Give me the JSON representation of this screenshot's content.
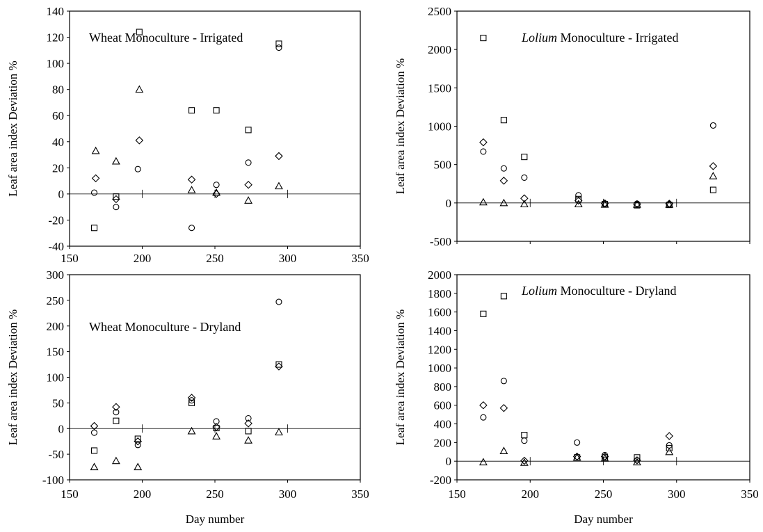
{
  "xlabel": "Day number",
  "ylabel": "Leaf area index Deviation %",
  "chart_data": [
    {
      "type": "scatter",
      "title": "Wheat Monoculture - Irrigated",
      "title_italic": "",
      "xlabel": "",
      "ylabel": "Leaf area index Deviation %",
      "xlim": [
        150,
        350
      ],
      "ylim": [
        -40,
        140
      ],
      "xticks": [
        "150",
        "200",
        "250",
        "300",
        "350"
      ],
      "yticks": [
        "-40",
        "-20",
        "0",
        "20",
        "40",
        "60",
        "80",
        "100",
        "120",
        "140"
      ],
      "series": [
        {
          "marker": "square",
          "points": [
            [
              167,
              -26
            ],
            [
              182,
              -2
            ],
            [
              198,
              124
            ],
            [
              234,
              64
            ],
            [
              251,
              64
            ],
            [
              273,
              49
            ],
            [
              294,
              115
            ]
          ]
        },
        {
          "marker": "circle",
          "points": [
            [
              167,
              1
            ],
            [
              182,
              -10
            ],
            [
              197,
              19
            ],
            [
              234,
              -26
            ],
            [
              251,
              7
            ],
            [
              273,
              24
            ],
            [
              294,
              112
            ]
          ]
        },
        {
          "marker": "diamond",
          "points": [
            [
              168,
              12
            ],
            [
              182,
              -4
            ],
            [
              198,
              41
            ],
            [
              234,
              11
            ],
            [
              251,
              0
            ],
            [
              273,
              7
            ],
            [
              294,
              29
            ]
          ]
        },
        {
          "marker": "triangle",
          "points": [
            [
              168,
              33
            ],
            [
              182,
              25
            ],
            [
              198,
              80
            ],
            [
              234,
              3
            ],
            [
              251,
              1
            ],
            [
              273,
              -5
            ],
            [
              294,
              6
            ]
          ]
        }
      ]
    },
    {
      "type": "scatter",
      "title": " Monoculture - Irrigated",
      "title_italic": "Lolium",
      "xlabel": "",
      "ylabel": "Leaf area index Deviation %",
      "xlim": [
        150,
        350
      ],
      "ylim": [
        -500,
        2500
      ],
      "xticks": [],
      "yticks": [
        "-500",
        "0",
        "500",
        "1000",
        "1500",
        "2000",
        "2500"
      ],
      "series": [
        {
          "marker": "square",
          "points": [
            [
              168,
              2150
            ],
            [
              182,
              1080
            ],
            [
              196,
              600
            ],
            [
              233,
              50
            ],
            [
              251,
              -15
            ],
            [
              273,
              -30
            ],
            [
              295,
              -25
            ],
            [
              325,
              170
            ]
          ]
        },
        {
          "marker": "circle",
          "points": [
            [
              168,
              670
            ],
            [
              182,
              450
            ],
            [
              196,
              330
            ],
            [
              233,
              100
            ],
            [
              251,
              -10
            ],
            [
              273,
              -10
            ],
            [
              295,
              -15
            ],
            [
              325,
              1010
            ]
          ]
        },
        {
          "marker": "diamond",
          "points": [
            [
              168,
              790
            ],
            [
              182,
              290
            ],
            [
              196,
              60
            ],
            [
              233,
              30
            ],
            [
              251,
              -5
            ],
            [
              273,
              -15
            ],
            [
              295,
              -10
            ],
            [
              325,
              480
            ]
          ]
        },
        {
          "marker": "triangle",
          "points": [
            [
              168,
              10
            ],
            [
              182,
              0
            ],
            [
              196,
              -15
            ],
            [
              233,
              -15
            ],
            [
              251,
              -20
            ],
            [
              273,
              -20
            ],
            [
              295,
              -20
            ],
            [
              325,
              350
            ]
          ]
        }
      ]
    },
    {
      "type": "scatter",
      "title": "Wheat Monoculture - Dryland",
      "title_italic": "",
      "xlabel": "Day number",
      "ylabel": "Leaf area index Deviation %",
      "xlim": [
        150,
        350
      ],
      "ylim": [
        -100,
        300
      ],
      "xticks": [
        "150",
        "200",
        "250",
        "300",
        "350"
      ],
      "yticks": [
        "-100",
        "-50",
        "0",
        "50",
        "100",
        "150",
        "200",
        "250",
        "300"
      ],
      "series": [
        {
          "marker": "square",
          "points": [
            [
              167,
              -43
            ],
            [
              182,
              15
            ],
            [
              197,
              -20
            ],
            [
              234,
              50
            ],
            [
              251,
              1
            ],
            [
              273,
              -5
            ],
            [
              294,
              125
            ]
          ]
        },
        {
          "marker": "circle",
          "points": [
            [
              167,
              -8
            ],
            [
              182,
              32
            ],
            [
              197,
              -32
            ],
            [
              234,
              55
            ],
            [
              251,
              14
            ],
            [
              273,
              20
            ],
            [
              294,
              247
            ]
          ]
        },
        {
          "marker": "diamond",
          "points": [
            [
              167,
              5
            ],
            [
              182,
              42
            ],
            [
              197,
              -25
            ],
            [
              234,
              60
            ],
            [
              251,
              3
            ],
            [
              273,
              10
            ],
            [
              294,
              121
            ]
          ]
        },
        {
          "marker": "triangle",
          "points": [
            [
              167,
              -75
            ],
            [
              182,
              -63
            ],
            [
              197,
              -75
            ],
            [
              234,
              -5
            ],
            [
              251,
              -15
            ],
            [
              273,
              -23
            ],
            [
              294,
              -7
            ]
          ]
        }
      ]
    },
    {
      "type": "scatter",
      "title": " Monoculture - Dryland",
      "title_italic": "Lolium",
      "xlabel": "Day number",
      "ylabel": "Leaf area index Deviation %",
      "xlim": [
        150,
        350
      ],
      "ylim": [
        -200,
        2000
      ],
      "xticks": [
        "150",
        "200",
        "250",
        "300",
        "350"
      ],
      "yticks": [
        "-200",
        "0",
        "200",
        "400",
        "600",
        "800",
        "1000",
        "1200",
        "1400",
        "1600",
        "1800",
        "2000"
      ],
      "series": [
        {
          "marker": "square",
          "points": [
            [
              168,
              1580
            ],
            [
              182,
              1770
            ],
            [
              196,
              280
            ],
            [
              232,
              40
            ],
            [
              251,
              40
            ],
            [
              273,
              40
            ],
            [
              295,
              140
            ]
          ]
        },
        {
          "marker": "circle",
          "points": [
            [
              168,
              470
            ],
            [
              182,
              860
            ],
            [
              196,
              220
            ],
            [
              232,
              200
            ],
            [
              251,
              65
            ],
            [
              273,
              10
            ],
            [
              295,
              170
            ]
          ]
        },
        {
          "marker": "diamond",
          "points": [
            [
              168,
              600
            ],
            [
              182,
              570
            ],
            [
              196,
              5
            ],
            [
              232,
              50
            ],
            [
              251,
              50
            ],
            [
              273,
              10
            ],
            [
              295,
              270
            ]
          ]
        },
        {
          "marker": "triangle",
          "points": [
            [
              168,
              -10
            ],
            [
              182,
              110
            ],
            [
              196,
              -15
            ],
            [
              232,
              40
            ],
            [
              251,
              30
            ],
            [
              273,
              -10
            ],
            [
              295,
              100
            ]
          ]
        }
      ]
    }
  ]
}
